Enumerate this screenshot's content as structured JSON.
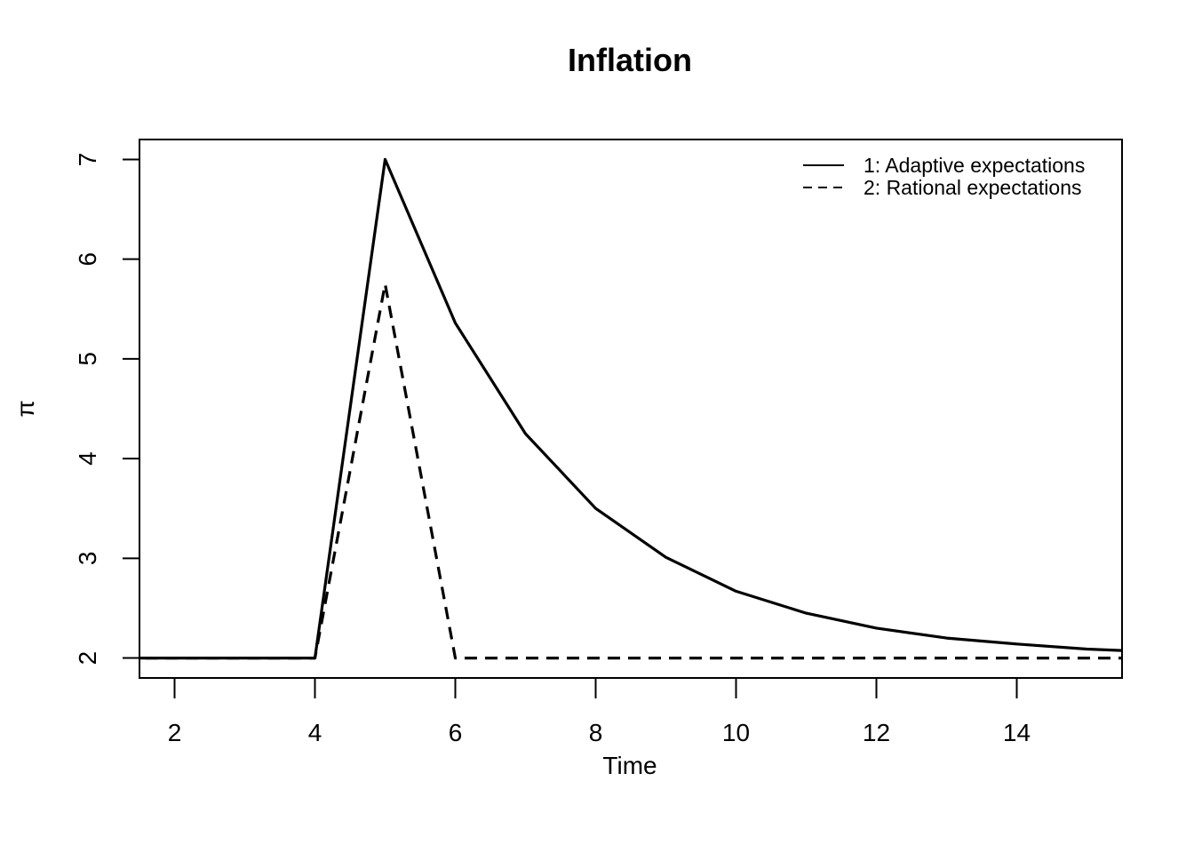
{
  "chart_data": {
    "type": "line",
    "title": "Inflation",
    "xlabel": "Time",
    "ylabel": "π",
    "xlim": [
      1.5,
      15.5
    ],
    "ylim": [
      1.8,
      7.2
    ],
    "xticks": [
      2,
      4,
      6,
      8,
      10,
      12,
      14
    ],
    "yticks": [
      2,
      3,
      4,
      5,
      6,
      7
    ],
    "grid": false,
    "legend_position": "top-right",
    "series": [
      {
        "name": "1: Adaptive expectations",
        "style": "solid",
        "color": "#000000",
        "x": [
          1,
          2,
          3,
          4,
          5,
          6,
          7,
          8,
          9,
          10,
          11,
          12,
          13,
          14,
          15,
          16
        ],
        "y": [
          2,
          2,
          2,
          2,
          7,
          5.36,
          4.25,
          3.5,
          3.01,
          2.67,
          2.45,
          2.3,
          2.2,
          2.14,
          2.09,
          2.06
        ]
      },
      {
        "name": "2: Rational expectations",
        "style": "dashed",
        "color": "#000000",
        "x": [
          1,
          2,
          3,
          4,
          5,
          6,
          7,
          8,
          9,
          10,
          11,
          12,
          13,
          14,
          15,
          16
        ],
        "y": [
          2,
          2,
          2,
          2,
          5.75,
          2,
          2,
          2,
          2,
          2,
          2,
          2,
          2,
          2,
          2,
          2
        ]
      }
    ]
  }
}
